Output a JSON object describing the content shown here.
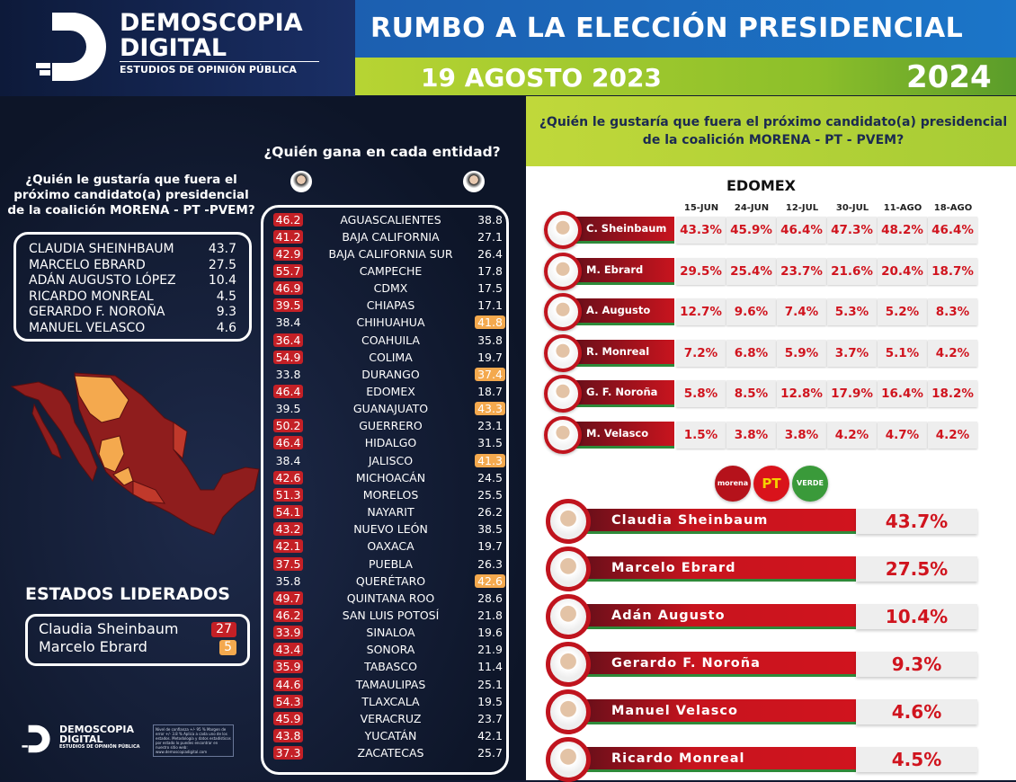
{
  "brand": {
    "line1": "DEMOSCOPIA",
    "line2": "DIGITAL",
    "line3": "ESTUDIOS DE OPINIÓN PÚBLICA"
  },
  "header": {
    "title": "RUMBO A LA ELECCIÓN PRESIDENCIAL",
    "date": "19 AGOSTO 2023",
    "year": "2024"
  },
  "left": {
    "question": "¿Quién le gustaría que fuera el próximo candidato(a) presidencial de la coalición MORENA - PT -PVEM?",
    "candidates": [
      {
        "name": "CLAUDIA SHEINHBAUM",
        "value": "43.7"
      },
      {
        "name": "MARCELO EBRARD",
        "value": "27.5"
      },
      {
        "name": "ADÁN AUGUSTO LÓPEZ",
        "value": "10.4"
      },
      {
        "name": "RICARDO MONREAL",
        "value": "4.5"
      },
      {
        "name": "GERARDO F. NOROÑA",
        "value": "9.3"
      },
      {
        "name": "MANUEL VELASCO",
        "value": "4.6"
      }
    ],
    "led_title": "ESTADOS LIDERADOS",
    "led": [
      {
        "name": "Claudia Sheinbaum",
        "value": "27",
        "color": "#c42026"
      },
      {
        "name": "Marcelo Ebrard",
        "value": "5",
        "color": "#f4a94e"
      }
    ],
    "footnote": "Nivel de confianza +/- 95 % Margen de error +/- 3.8 % Aplica a cada uno de los estados. Metodología y datos estadísticos por estado lo puedes encontrar en nuestro sitio web: www.demoscopiadigital.com"
  },
  "states": {
    "title": "¿Quién gana en cada entidad?",
    "rows": [
      [
        "46.2",
        "AGUASCALIENTES",
        "38.8",
        "L"
      ],
      [
        "41.2",
        "BAJA CALIFORNIA",
        "27.1",
        "L"
      ],
      [
        "42.9",
        "BAJA CALIFORNIA SUR",
        "26.4",
        "L"
      ],
      [
        "55.7",
        "CAMPECHE",
        "17.8",
        "L"
      ],
      [
        "46.9",
        "CDMX",
        "17.5",
        "L"
      ],
      [
        "39.5",
        "CHIAPAS",
        "17.1",
        "L"
      ],
      [
        "38.4",
        "CHIHUAHUA",
        "41.8",
        "R"
      ],
      [
        "36.4",
        "COAHUILA",
        "35.8",
        "L"
      ],
      [
        "54.9",
        "COLIMA",
        "19.7",
        "L"
      ],
      [
        "33.8",
        "DURANGO",
        "37.4",
        "R"
      ],
      [
        "46.4",
        "EDOMEX",
        "18.7",
        "L"
      ],
      [
        "39.5",
        "GUANAJUATO",
        "43.3",
        "R"
      ],
      [
        "50.2",
        "GUERRERO",
        "23.1",
        "L"
      ],
      [
        "46.4",
        "HIDALGO",
        "31.5",
        "L"
      ],
      [
        "38.4",
        "JALISCO",
        "41.3",
        "R"
      ],
      [
        "42.6",
        "MICHOACÁN",
        "24.5",
        "L"
      ],
      [
        "51.3",
        "MORELOS",
        "25.5",
        "L"
      ],
      [
        "54.1",
        "NAYARIT",
        "26.2",
        "L"
      ],
      [
        "43.2",
        "NUEVO LEÓN",
        "38.5",
        "L"
      ],
      [
        "42.1",
        "OAXACA",
        "19.7",
        "L"
      ],
      [
        "37.5",
        "PUEBLA",
        "26.3",
        "L"
      ],
      [
        "35.8",
        "QUERÉTARO",
        "42.6",
        "R"
      ],
      [
        "49.7",
        "QUINTANA ROO",
        "28.6",
        "L"
      ],
      [
        "46.2",
        "SAN LUIS POTOSÍ",
        "21.8",
        "L"
      ],
      [
        "33.9",
        "SINALOA",
        "19.6",
        "L"
      ],
      [
        "43.4",
        "SONORA",
        "21.9",
        "L"
      ],
      [
        "35.9",
        "TABASCO",
        "11.4",
        "L"
      ],
      [
        "44.6",
        "TAMAULIPAS",
        "25.1",
        "L"
      ],
      [
        "54.3",
        "TLAXCALA",
        "19.5",
        "L"
      ],
      [
        "45.9",
        "VERACRUZ",
        "23.7",
        "L"
      ],
      [
        "43.8",
        "YUCATÁN",
        "42.1",
        "L"
      ],
      [
        "37.3",
        "ZACATECAS",
        "25.7",
        "L"
      ]
    ]
  },
  "right": {
    "question": "¿Quién le gustaría que fuera el próximo candidato(a) presidencial de la coalición MORENA - PT - PVEM?",
    "edomex_title": "EDOMEX",
    "dates": [
      "15-JUN",
      "24-JUN",
      "12-JUL",
      "30-JUL",
      "11-AGO",
      "18-AGO"
    ],
    "edomex": [
      {
        "name": "C. Sheinbaum",
        "values": [
          "43.3%",
          "45.9%",
          "46.4%",
          "47.3%",
          "48.2%",
          "46.4%"
        ]
      },
      {
        "name": "M. Ebrard",
        "values": [
          "29.5%",
          "25.4%",
          "23.7%",
          "21.6%",
          "20.4%",
          "18.7%"
        ]
      },
      {
        "name": "A. Augusto",
        "values": [
          "12.7%",
          "9.6%",
          "7.4%",
          "5.3%",
          "5.2%",
          "8.3%"
        ]
      },
      {
        "name": "R. Monreal",
        "values": [
          "7.2%",
          "6.8%",
          "5.9%",
          "3.7%",
          "5.1%",
          "4.2%"
        ]
      },
      {
        "name": "G. F. Noroña",
        "values": [
          "5.8%",
          "8.5%",
          "12.8%",
          "17.9%",
          "16.4%",
          "18.2%"
        ]
      },
      {
        "name": "M. Velasco",
        "values": [
          "1.5%",
          "3.8%",
          "3.8%",
          "4.2%",
          "4.7%",
          "4.2%"
        ]
      }
    ],
    "parties": [
      {
        "label": "morena",
        "color": "#b5121b"
      },
      {
        "label": "PT",
        "color": "#d9131b"
      },
      {
        "label": "VERDE",
        "color": "#3a9a3a"
      }
    ],
    "national": [
      {
        "name": "Claudia Sheinbaum",
        "value": "43.7%"
      },
      {
        "name": "Marcelo Ebrard",
        "value": "27.5%"
      },
      {
        "name": "Adán Augusto",
        "value": "10.4%"
      },
      {
        "name": "Gerardo F. Noroña",
        "value": "9.3%"
      },
      {
        "name": "Manuel Velasco",
        "value": "4.6%"
      },
      {
        "name": "Ricardo Monreal",
        "value": "4.5%"
      }
    ]
  },
  "colors": {
    "morena_red": "#c42026",
    "ebrard_orange": "#f4a94e",
    "green": "#8cbf2a",
    "blue": "#1b6fc0"
  }
}
